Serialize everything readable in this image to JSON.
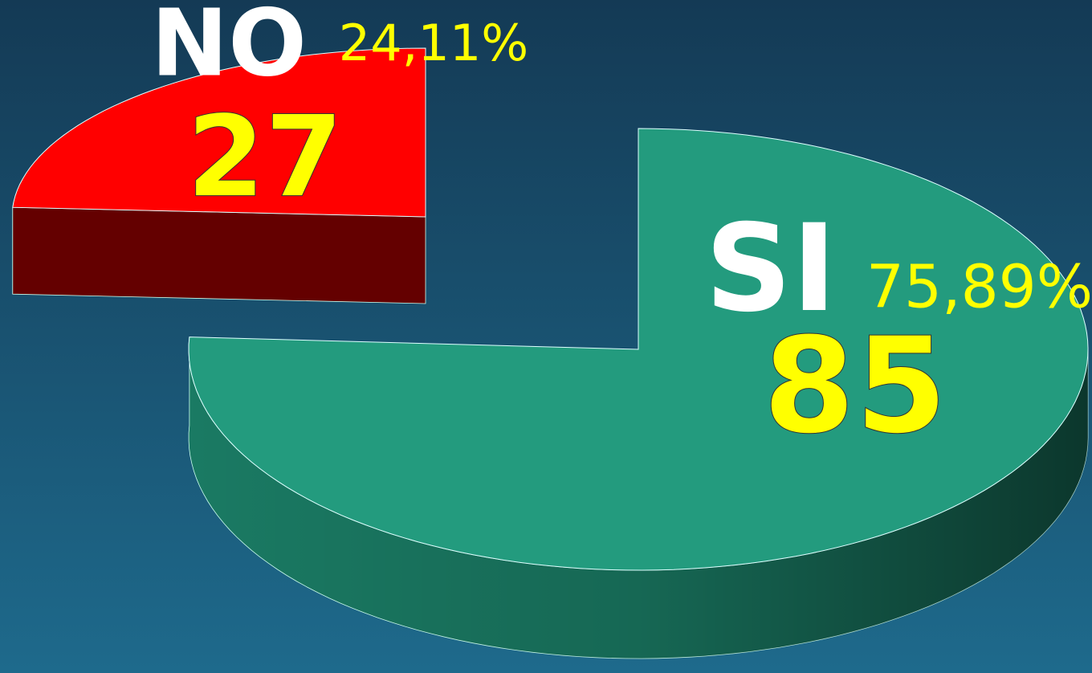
{
  "chart_data": {
    "type": "pie",
    "categories": [
      "NO",
      "SI"
    ],
    "values": [
      27,
      85
    ],
    "percentage_labels": [
      "24,11%",
      "75,89%"
    ],
    "colors": [
      "#ff0000",
      "#239b7e"
    ],
    "side_colors": [
      "#640000",
      "#1a7a63"
    ]
  }
}
